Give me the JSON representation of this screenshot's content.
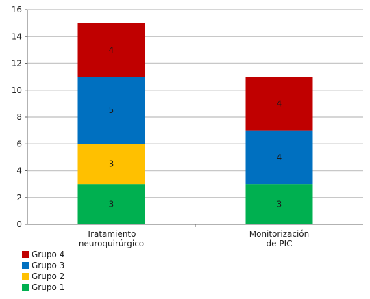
{
  "chart_data": {
    "type": "bar",
    "stacked": true,
    "categories": [
      [
        "Tratamiento",
        "neuroquirúrgico"
      ],
      [
        "Monitorización",
        "de PIC"
      ]
    ],
    "ylim": [
      0,
      16
    ],
    "yticks": [
      "0",
      "2",
      "4",
      "6",
      "8",
      "10",
      "12",
      "14",
      "16"
    ],
    "grid": true,
    "legend_position": "bottom-left",
    "series": [
      {
        "name": "Grupo 1",
        "color": "#00b050",
        "values": [
          3,
          3
        ]
      },
      {
        "name": "Grupo 2",
        "color": "#ffc000",
        "values": [
          3,
          0
        ]
      },
      {
        "name": "Grupo 3",
        "color": "#0070c0",
        "values": [
          5,
          4
        ]
      },
      {
        "name": "Grupo 4",
        "color": "#c00000",
        "values": [
          4,
          4
        ]
      }
    ],
    "legend_order": [
      "Grupo 4",
      "Grupo 3",
      "Grupo 2",
      "Grupo 1"
    ]
  }
}
